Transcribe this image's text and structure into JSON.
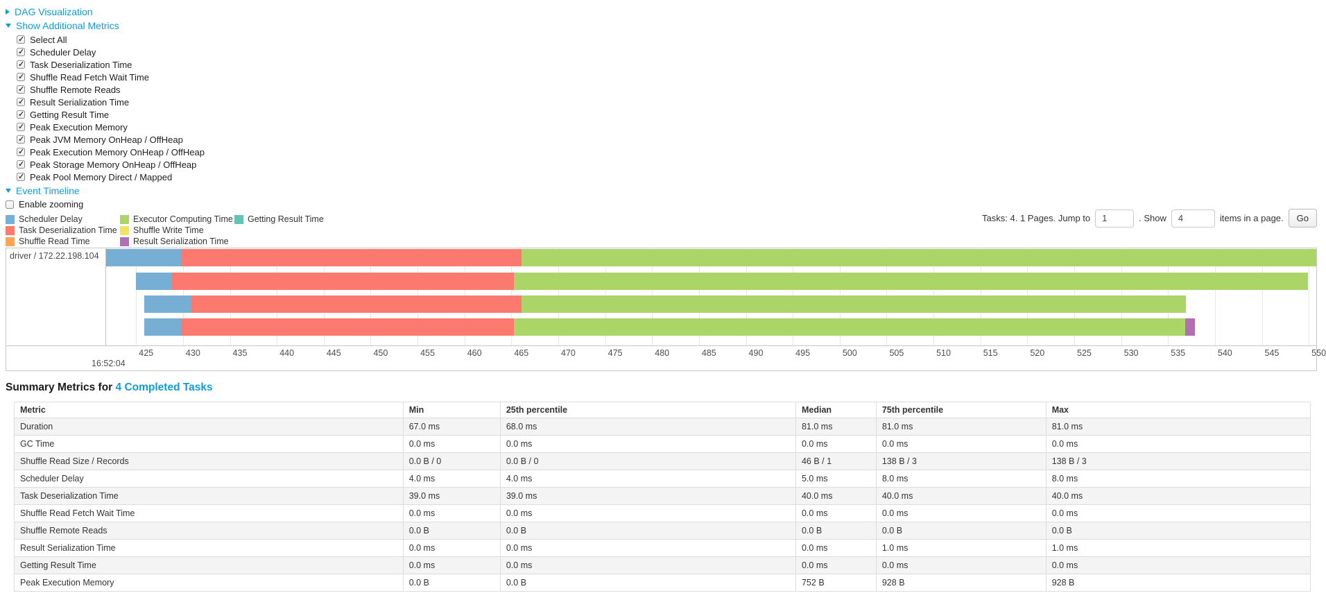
{
  "dag_section": {
    "label": "DAG Visualization"
  },
  "metrics_section": {
    "label": "Show Additional Metrics",
    "checkboxes": [
      {
        "label": "Select All",
        "checked": true
      },
      {
        "label": "Scheduler Delay",
        "checked": true
      },
      {
        "label": "Task Deserialization Time",
        "checked": true
      },
      {
        "label": "Shuffle Read Fetch Wait Time",
        "checked": true
      },
      {
        "label": "Shuffle Remote Reads",
        "checked": true
      },
      {
        "label": "Result Serialization Time",
        "checked": true
      },
      {
        "label": "Getting Result Time",
        "checked": true
      },
      {
        "label": "Peak Execution Memory",
        "checked": true
      },
      {
        "label": "Peak JVM Memory OnHeap / OffHeap",
        "checked": true
      },
      {
        "label": "Peak Execution Memory OnHeap / OffHeap",
        "checked": true
      },
      {
        "label": "Peak Storage Memory OnHeap / OffHeap",
        "checked": true
      },
      {
        "label": "Peak Pool Memory Direct / Mapped",
        "checked": true
      }
    ]
  },
  "timeline_section": {
    "label": "Event Timeline",
    "enable_zooming": {
      "label": "Enable zooming",
      "checked": false
    }
  },
  "legend": {
    "columns": [
      [
        {
          "label": "Scheduler Delay",
          "color": "#76AFD3"
        },
        {
          "label": "Task Deserialization Time",
          "color": "#FB796F"
        },
        {
          "label": "Shuffle Read Time",
          "color": "#F9A65B"
        }
      ],
      [
        {
          "label": "Executor Computing Time",
          "color": "#ABD566"
        },
        {
          "label": "Shuffle Write Time",
          "color": "#F3E45F"
        },
        {
          "label": "Result Serialization Time",
          "color": "#B26FB2"
        }
      ],
      [
        {
          "label": "Getting Result Time",
          "color": "#64C3B2"
        }
      ]
    ]
  },
  "pagination": {
    "prefix": "Tasks: 4. 1 Pages. Jump to",
    "jump_value": "1",
    "mid": ". Show",
    "show_value": "4",
    "suffix": "items in a page.",
    "go": "Go"
  },
  "chart_data": {
    "type": "timeline",
    "group_label": "driver / 172.22.198.104",
    "axis": {
      "min": 421.8,
      "max": 550.8,
      "tick_start": 425,
      "tick_step": 5,
      "tick_end": 550,
      "major_label": "16:52:04"
    },
    "segment_colors": {
      "scheduler_delay": "#76AFD3",
      "task_deserialization": "#FB796F",
      "shuffle_read": "#F9A65B",
      "executor_computing": "#ABD566",
      "shuffle_write": "#F3E45F",
      "result_serialization": "#B26FB2",
      "getting_result": "#64C3B2"
    },
    "tasks": [
      {
        "segments": [
          {
            "type": "scheduler_delay",
            "start": 421.8,
            "end": 429.8
          },
          {
            "type": "task_deserialization",
            "start": 429.8,
            "end": 466.1
          },
          {
            "type": "executor_computing",
            "start": 466.1,
            "end": 550.8
          }
        ]
      },
      {
        "segments": [
          {
            "type": "scheduler_delay",
            "start": 425.0,
            "end": 428.8
          },
          {
            "type": "task_deserialization",
            "start": 428.8,
            "end": 465.3
          },
          {
            "type": "executor_computing",
            "start": 465.3,
            "end": 549.9
          }
        ]
      },
      {
        "segments": [
          {
            "type": "scheduler_delay",
            "start": 425.9,
            "end": 430.9
          },
          {
            "type": "task_deserialization",
            "start": 430.9,
            "end": 466.1
          },
          {
            "type": "executor_computing",
            "start": 466.1,
            "end": 536.9
          }
        ]
      },
      {
        "segments": [
          {
            "type": "scheduler_delay",
            "start": 425.9,
            "end": 429.8
          },
          {
            "type": "task_deserialization",
            "start": 429.8,
            "end": 465.3
          },
          {
            "type": "executor_computing",
            "start": 465.3,
            "end": 536.8
          },
          {
            "type": "result_serialization",
            "start": 536.8,
            "end": 537.9
          }
        ]
      }
    ]
  },
  "summary": {
    "title_prefix": "Summary Metrics for",
    "title_link": "4 Completed Tasks",
    "table": {
      "headers": [
        "Metric",
        "Min",
        "25th percentile",
        "Median",
        "75th percentile",
        "Max"
      ],
      "rows": [
        [
          "Duration",
          "67.0 ms",
          "68.0 ms",
          "81.0 ms",
          "81.0 ms",
          "81.0 ms"
        ],
        [
          "GC Time",
          "0.0 ms",
          "0.0 ms",
          "0.0 ms",
          "0.0 ms",
          "0.0 ms"
        ],
        [
          "Shuffle Read Size / Records",
          "0.0 B / 0",
          "0.0 B / 0",
          "46 B / 1",
          "138 B / 3",
          "138 B / 3"
        ],
        [
          "Scheduler Delay",
          "4.0 ms",
          "4.0 ms",
          "5.0 ms",
          "8.0 ms",
          "8.0 ms"
        ],
        [
          "Task Deserialization Time",
          "39.0 ms",
          "39.0 ms",
          "40.0 ms",
          "40.0 ms",
          "40.0 ms"
        ],
        [
          "Shuffle Read Fetch Wait Time",
          "0.0 ms",
          "0.0 ms",
          "0.0 ms",
          "0.0 ms",
          "0.0 ms"
        ],
        [
          "Shuffle Remote Reads",
          "0.0 B",
          "0.0 B",
          "0.0 B",
          "0.0 B",
          "0.0 B"
        ],
        [
          "Result Serialization Time",
          "0.0 ms",
          "0.0 ms",
          "0.0 ms",
          "1.0 ms",
          "1.0 ms"
        ],
        [
          "Getting Result Time",
          "0.0 ms",
          "0.0 ms",
          "0.0 ms",
          "0.0 ms",
          "0.0 ms"
        ],
        [
          "Peak Execution Memory",
          "0.0 B",
          "0.0 B",
          "752 B",
          "928 B",
          "928 B"
        ]
      ]
    }
  }
}
